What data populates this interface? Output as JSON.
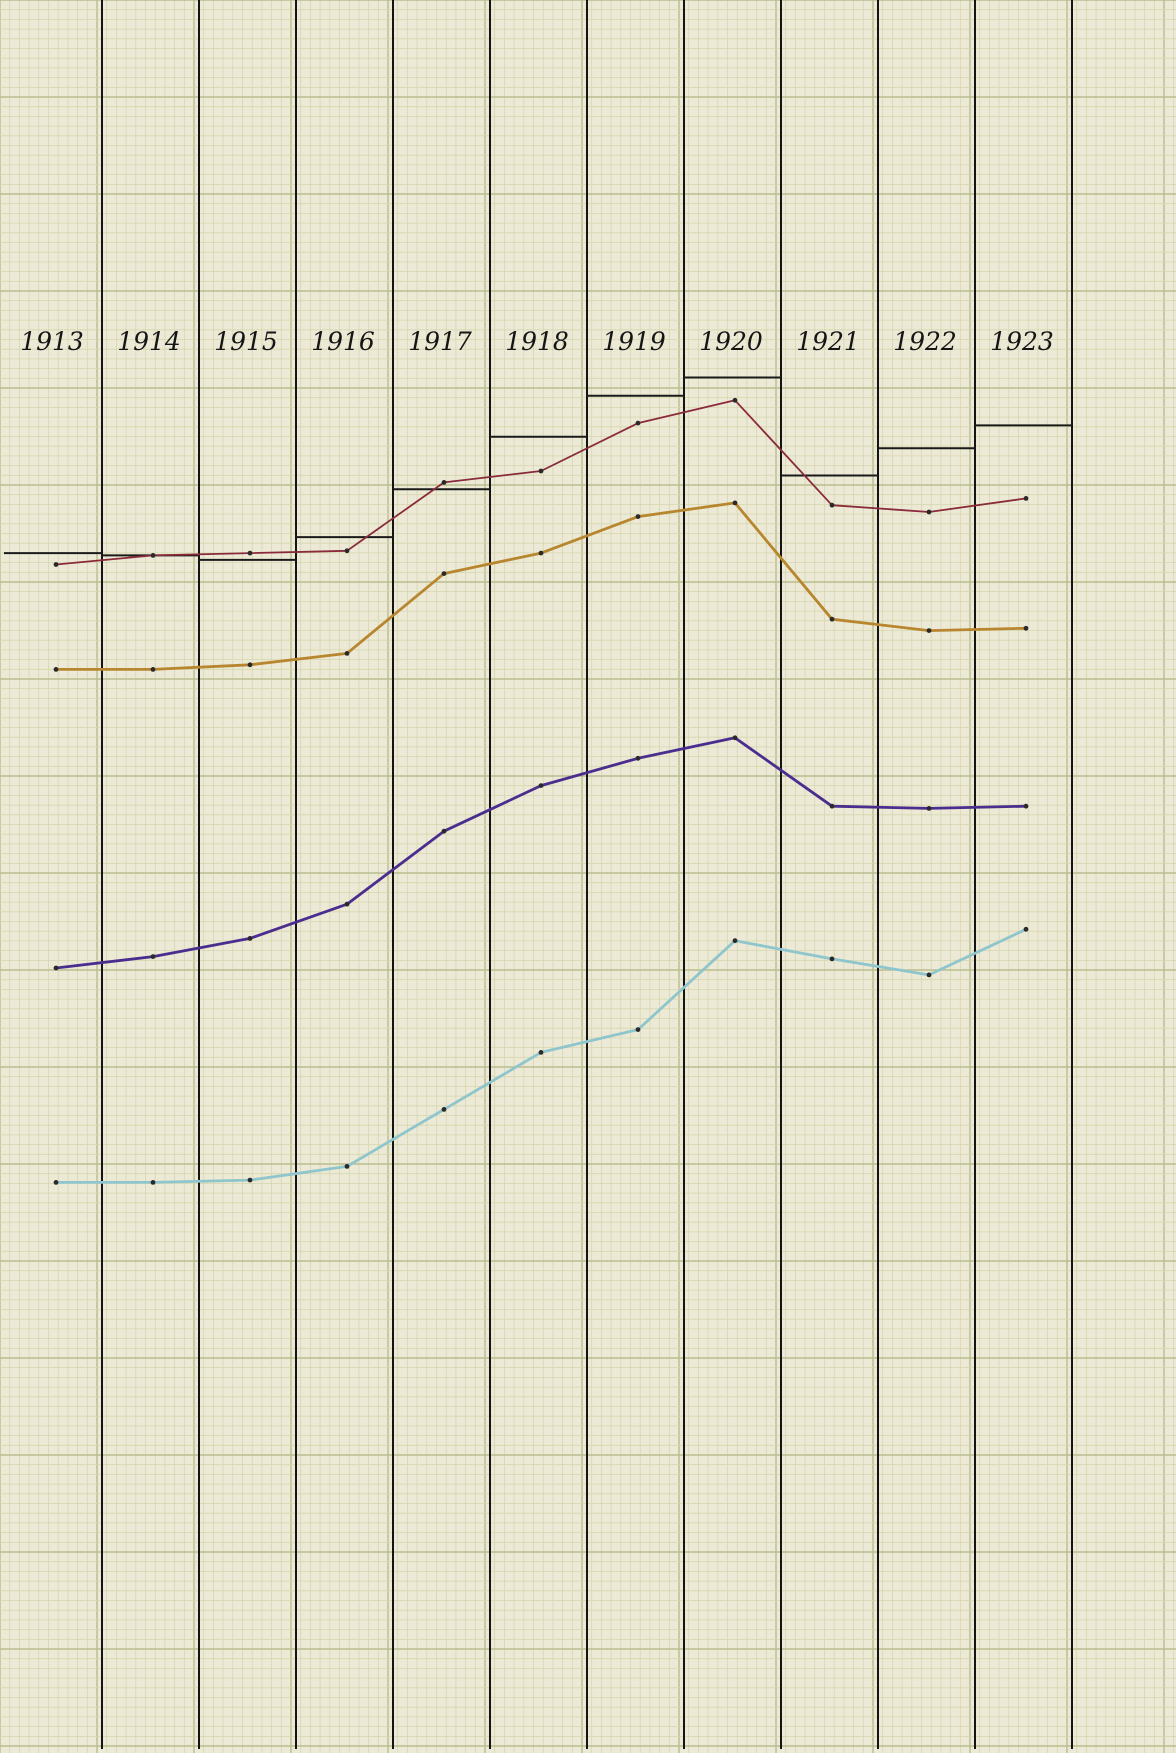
{
  "chart_data": {
    "type": "line",
    "title": "",
    "xlabel": "",
    "ylabel": "",
    "grid": true,
    "categories": [
      "1913",
      "1914",
      "1915",
      "1916",
      "1917",
      "1918",
      "1919",
      "1920",
      "1921",
      "1922",
      "1923"
    ],
    "annotations": [],
    "steps": {
      "name": "",
      "color": "#1a1a1a",
      "values": [
        589,
        588,
        586,
        596,
        617,
        640,
        658,
        666,
        623,
        635,
        645
      ]
    },
    "series": [
      {
        "name": "",
        "color": "#8a2a3a",
        "stroke_weight": "thin",
        "values": [
          584,
          588,
          589,
          590,
          620,
          625,
          646,
          656,
          610,
          607,
          613
        ]
      },
      {
        "name": "",
        "color": "#b8862e",
        "stroke_weight": "medium",
        "values": [
          538,
          538,
          540,
          545,
          580,
          589,
          605,
          611,
          560,
          555,
          556
        ]
      },
      {
        "name": "",
        "color": "#4a2d8f",
        "stroke_weight": "medium",
        "values": [
          407,
          412,
          420,
          435,
          467,
          487,
          499,
          508,
          478,
          477,
          478
        ]
      },
      {
        "name": "",
        "color": "#8fc5cc",
        "stroke_weight": "medium",
        "values": [
          313,
          313,
          314,
          320,
          345,
          370,
          380,
          419,
          411,
          404,
          424
        ]
      }
    ]
  }
}
